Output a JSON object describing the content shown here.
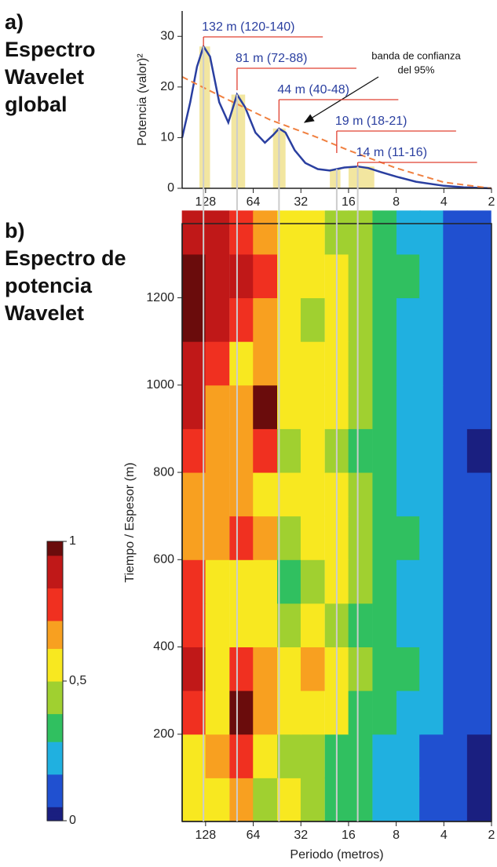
{
  "chart_data": [
    {
      "type": "line",
      "panel": "a)",
      "title": [
        "Espectro",
        "Wavelet",
        "global"
      ],
      "ylabel": "Potencia (valor)²",
      "xlim": [
        180,
        2
      ],
      "xticks": [
        128,
        64,
        32,
        16,
        8,
        4,
        2
      ],
      "log_x": 2,
      "ylim": [
        0,
        35
      ],
      "yticks": [
        0,
        10,
        20,
        30
      ],
      "series": [
        {
          "color": "#2a3fa0",
          "x": [
            180,
            160,
            145,
            132,
            120,
            105,
            92,
            81,
            72,
            62,
            54,
            48,
            44,
            40,
            35,
            30,
            25,
            21,
            19,
            17,
            14,
            12,
            10,
            8,
            6,
            4,
            3,
            2
          ],
          "values": [
            10,
            17,
            24,
            28,
            26,
            17,
            13,
            18.5,
            16,
            11,
            9,
            10.5,
            11.8,
            11,
            7.5,
            5,
            3.8,
            3.5,
            3.8,
            4.1,
            4.3,
            4,
            3.2,
            2.3,
            1.3,
            0.5,
            0.2,
            0
          ]
        },
        {
          "color": "#f08040",
          "dashed": true,
          "x": [
            180,
            100,
            50,
            25,
            16,
            8,
            4,
            2
          ],
          "values": [
            22,
            18,
            13.5,
            10,
            7.5,
            4,
            1.2,
            0
          ]
        }
      ],
      "bands_color": "#f2e6a0",
      "annotation_color": "#e04030",
      "annotations": [
        {
          "label": "132 m (120-140)",
          "period": 132,
          "low": 120,
          "high": 140,
          "value": 28
        },
        {
          "label": "81 m (72-88)",
          "period": 81,
          "low": 72,
          "high": 88,
          "value": 18.5
        },
        {
          "label": "44 m (40-48)",
          "period": 44,
          "low": 40,
          "high": 48,
          "value": 11.8
        },
        {
          "label": "19 m (18-21)",
          "period": 19,
          "low": 18,
          "high": 21,
          "value": 3.8
        },
        {
          "label": "14 m (11-16)",
          "period": 14,
          "low": 11,
          "high": 16,
          "value": 4.3
        }
      ],
      "note": [
        "banda de confianza",
        "del 95%"
      ]
    },
    {
      "type": "heatmap",
      "panel": "b)",
      "title": [
        "Espectro de",
        "potencia",
        "Wavelet"
      ],
      "xlabel": "Periodo (metros)",
      "ylabel": "Tiempo / Espesor (m)",
      "xlim": [
        180,
        2
      ],
      "xticks": [
        128,
        64,
        32,
        16,
        8,
        4,
        2
      ],
      "log_x": 2,
      "ylim": [
        0,
        1370
      ],
      "yticks": [
        200,
        400,
        600,
        800,
        1000,
        1200
      ],
      "x": [
        152,
        108,
        76,
        54,
        38,
        27,
        19,
        13.5,
        9.5,
        6.7,
        4.8,
        3.4,
        2.4
      ],
      "y": [
        50,
        150,
        250,
        350,
        450,
        550,
        650,
        750,
        850,
        950,
        1050,
        1150,
        1250,
        1350
      ],
      "z": [
        [
          0.55,
          0.6,
          0.7,
          0.45,
          0.5,
          0.4,
          0.35,
          0.3,
          0.25,
          0.2,
          0.15,
          0.1,
          0.05
        ],
        [
          0.6,
          0.65,
          0.75,
          0.55,
          0.45,
          0.4,
          0.35,
          0.3,
          0.25,
          0.2,
          0.15,
          0.1,
          0.05
        ],
        [
          0.75,
          0.6,
          0.95,
          0.7,
          0.55,
          0.6,
          0.5,
          0.35,
          0.3,
          0.25,
          0.2,
          0.12,
          0.08
        ],
        [
          0.85,
          0.55,
          0.8,
          0.65,
          0.5,
          0.7,
          0.6,
          0.45,
          0.35,
          0.3,
          0.2,
          0.15,
          0.1
        ],
        [
          0.8,
          0.5,
          0.6,
          0.55,
          0.4,
          0.5,
          0.45,
          0.35,
          0.3,
          0.25,
          0.2,
          0.15,
          0.1
        ],
        [
          0.75,
          0.55,
          0.6,
          0.55,
          0.35,
          0.4,
          0.55,
          0.4,
          0.3,
          0.25,
          0.2,
          0.12,
          0.08
        ],
        [
          0.7,
          0.65,
          0.75,
          0.7,
          0.45,
          0.55,
          0.6,
          0.4,
          0.35,
          0.3,
          0.2,
          0.15,
          0.1
        ],
        [
          0.65,
          0.7,
          0.7,
          0.6,
          0.55,
          0.6,
          0.5,
          0.4,
          0.3,
          0.25,
          0.2,
          0.15,
          0.1
        ],
        [
          0.75,
          0.7,
          0.65,
          0.75,
          0.45,
          0.5,
          0.45,
          0.35,
          0.3,
          0.25,
          0.2,
          0.1,
          0.05
        ],
        [
          0.85,
          0.7,
          0.65,
          0.95,
          0.55,
          0.5,
          0.55,
          0.4,
          0.3,
          0.25,
          0.2,
          0.15,
          0.1
        ],
        [
          0.9,
          0.75,
          0.6,
          0.7,
          0.6,
          0.5,
          0.5,
          0.45,
          0.35,
          0.25,
          0.2,
          0.15,
          0.1
        ],
        [
          0.95,
          0.9,
          0.8,
          0.7,
          0.55,
          0.45,
          0.5,
          0.4,
          0.3,
          0.25,
          0.2,
          0.15,
          0.1
        ],
        [
          0.95,
          0.9,
          0.9,
          0.75,
          0.6,
          0.55,
          0.6,
          0.45,
          0.35,
          0.3,
          0.2,
          0.15,
          0.1
        ],
        [
          0.9,
          0.85,
          0.8,
          0.65,
          0.55,
          0.5,
          0.45,
          0.4,
          0.3,
          0.25,
          0.2,
          0.12,
          0.08
        ]
      ],
      "zlim": [
        0,
        1
      ],
      "zticks": [
        0,
        {
          "value": 0.5,
          "label": "0,5"
        },
        1
      ],
      "colorscale": [
        "#1a1f80",
        "#2050d0",
        "#20b0e0",
        "#30c060",
        "#a0d030",
        "#f8e820",
        "#f8a020",
        "#f03020",
        "#c01818",
        "#6a0c0c"
      ]
    }
  ]
}
